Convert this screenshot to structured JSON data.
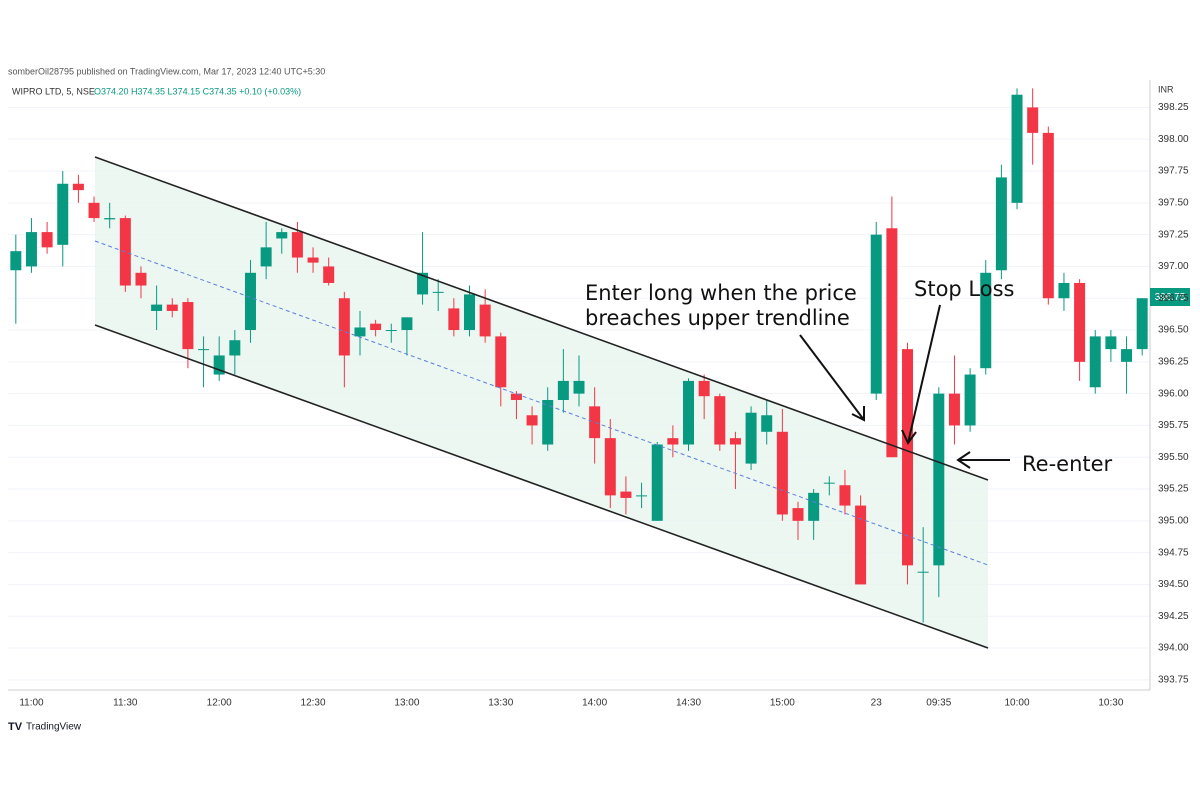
{
  "chart_data": {
    "type": "candlestick",
    "header": "somberOil28795 published on TradingView.com, Mar 17, 2023 12:40 UTC+5:30",
    "title": "WIPRO LTD, 5, NSE",
    "ohlc_readout": "O374.20 H374.35 L374.15 C374.35 +0.10 (+0.03%)",
    "y_label": "INR",
    "footer": "TradingView",
    "annotations": [
      "Enter long when the price",
      "breaches upper trendline",
      "Stop Loss",
      "Re-enter"
    ],
    "categories": [
      null,
      "11:00",
      null,
      null,
      null,
      null,
      null,
      "11:30",
      null,
      null,
      null,
      null,
      null,
      "12:00",
      null,
      null,
      null,
      null,
      null,
      "12:30",
      null,
      null,
      null,
      null,
      null,
      "13:00",
      null,
      null,
      null,
      null,
      null,
      "13:30",
      null,
      null,
      null,
      null,
      null,
      "14:00",
      null,
      null,
      null,
      null,
      null,
      "14:30",
      null,
      null,
      null,
      null,
      null,
      "15:00",
      null,
      null,
      null,
      null,
      null,
      "23",
      null,
      null,
      null,
      "09:35",
      null,
      null,
      null,
      null,
      "10:00",
      null,
      null,
      null,
      null,
      null,
      "10:30",
      null,
      null
    ],
    "open": [
      396.97,
      397.0,
      397.27,
      397.17,
      397.65,
      397.5,
      397.37,
      397.38,
      396.95,
      396.65,
      396.7,
      396.72,
      396.35,
      396.15,
      396.3,
      396.5,
      397.0,
      397.22,
      397.27,
      397.07,
      397.0,
      396.75,
      396.45,
      396.55,
      396.5,
      396.5,
      396.78,
      396.8,
      396.67,
      396.5,
      396.7,
      396.45,
      396.0,
      395.83,
      395.6,
      395.95,
      396.0,
      395.9,
      395.65,
      395.23,
      395.2,
      395.0,
      395.65,
      395.6,
      396.1,
      395.98,
      395.65,
      395.45,
      395.7,
      395.7,
      395.1,
      395.0,
      395.3,
      395.28,
      395.12,
      396.0,
      397.3,
      396.35,
      394.6,
      394.65,
      396.0,
      395.75,
      396.2,
      396.97,
      397.5,
      398.25,
      398.05,
      396.75,
      396.87,
      396.05,
      396.35,
      396.25,
      396.35
    ],
    "high": [
      397.25,
      397.38,
      397.35,
      397.75,
      397.72,
      397.55,
      397.5,
      397.4,
      397.0,
      396.85,
      396.75,
      396.75,
      396.45,
      396.45,
      396.5,
      397.05,
      397.35,
      397.3,
      397.35,
      397.15,
      397.07,
      396.8,
      396.65,
      396.58,
      396.55,
      396.6,
      397.27,
      396.9,
      396.75,
      396.85,
      396.82,
      396.48,
      396.02,
      395.9,
      396.05,
      396.35,
      396.3,
      396.05,
      395.8,
      395.35,
      395.3,
      395.62,
      395.75,
      396.12,
      396.15,
      396.0,
      395.7,
      395.9,
      395.95,
      395.88,
      395.15,
      395.25,
      395.35,
      395.4,
      395.2,
      397.35,
      397.55,
      396.4,
      394.95,
      396.05,
      396.3,
      396.2,
      397.05,
      397.8,
      398.4,
      398.4,
      398.1,
      396.95,
      396.9,
      396.5,
      396.5,
      396.45,
      396.75
    ],
    "low": [
      396.55,
      396.95,
      397.1,
      397.0,
      397.5,
      397.35,
      397.3,
      396.8,
      396.75,
      396.5,
      396.6,
      396.2,
      396.05,
      396.1,
      396.15,
      396.4,
      396.9,
      397.1,
      396.95,
      396.95,
      396.85,
      396.05,
      396.3,
      396.45,
      396.4,
      396.3,
      396.7,
      396.65,
      396.45,
      396.45,
      396.4,
      395.9,
      395.8,
      395.6,
      395.55,
      395.85,
      395.9,
      395.45,
      395.1,
      395.05,
      395.1,
      395.0,
      395.5,
      395.55,
      395.8,
      395.55,
      395.25,
      395.4,
      395.6,
      395.0,
      394.85,
      394.85,
      395.2,
      395.05,
      394.5,
      395.95,
      395.5,
      394.5,
      394.2,
      394.4,
      395.6,
      395.7,
      396.15,
      396.9,
      397.45,
      397.8,
      396.7,
      396.65,
      396.1,
      396.0,
      396.25,
      396.0,
      396.3
    ],
    "close": [
      397.12,
      397.27,
      397.15,
      397.65,
      397.6,
      397.38,
      397.38,
      396.85,
      396.85,
      396.7,
      396.65,
      396.35,
      396.35,
      396.3,
      396.42,
      396.95,
      397.15,
      397.27,
      397.07,
      397.03,
      396.87,
      396.3,
      396.52,
      396.5,
      396.5,
      396.6,
      396.95,
      396.8,
      396.5,
      396.78,
      396.45,
      396.05,
      395.95,
      395.75,
      395.95,
      396.1,
      396.1,
      395.65,
      395.2,
      395.18,
      395.2,
      395.6,
      395.6,
      396.1,
      395.98,
      395.6,
      395.6,
      395.85,
      395.83,
      395.05,
      395.0,
      395.22,
      395.3,
      395.12,
      394.5,
      397.25,
      395.5,
      394.65,
      394.6,
      396.0,
      395.75,
      396.15,
      396.95,
      397.7,
      398.35,
      398.05,
      396.75,
      396.87,
      396.25,
      396.45,
      396.45,
      396.35,
      396.75
    ],
    "up_color": "#089981",
    "down_color": "#f23645",
    "ylim": [
      393.67,
      398.45
    ],
    "yticks": [
      393.75,
      {
        "value": 394,
        "label": "394.00"
      },
      394.25,
      {
        "value": 394.5,
        "label": "394.50"
      },
      394.75,
      {
        "value": 395,
        "label": "395.00"
      },
      395.25,
      {
        "value": 395.5,
        "label": "395.50"
      },
      395.75,
      {
        "value": 396,
        "label": "396.00"
      },
      396.25,
      {
        "value": 396.5,
        "label": "396.50"
      },
      396.75,
      {
        "value": 397,
        "label": "397.00"
      },
      397.25,
      {
        "value": 397.5,
        "label": "397.50"
      },
      397.75,
      {
        "value": 398,
        "label": "398.00"
      },
      398.25
    ],
    "grid": true
  }
}
